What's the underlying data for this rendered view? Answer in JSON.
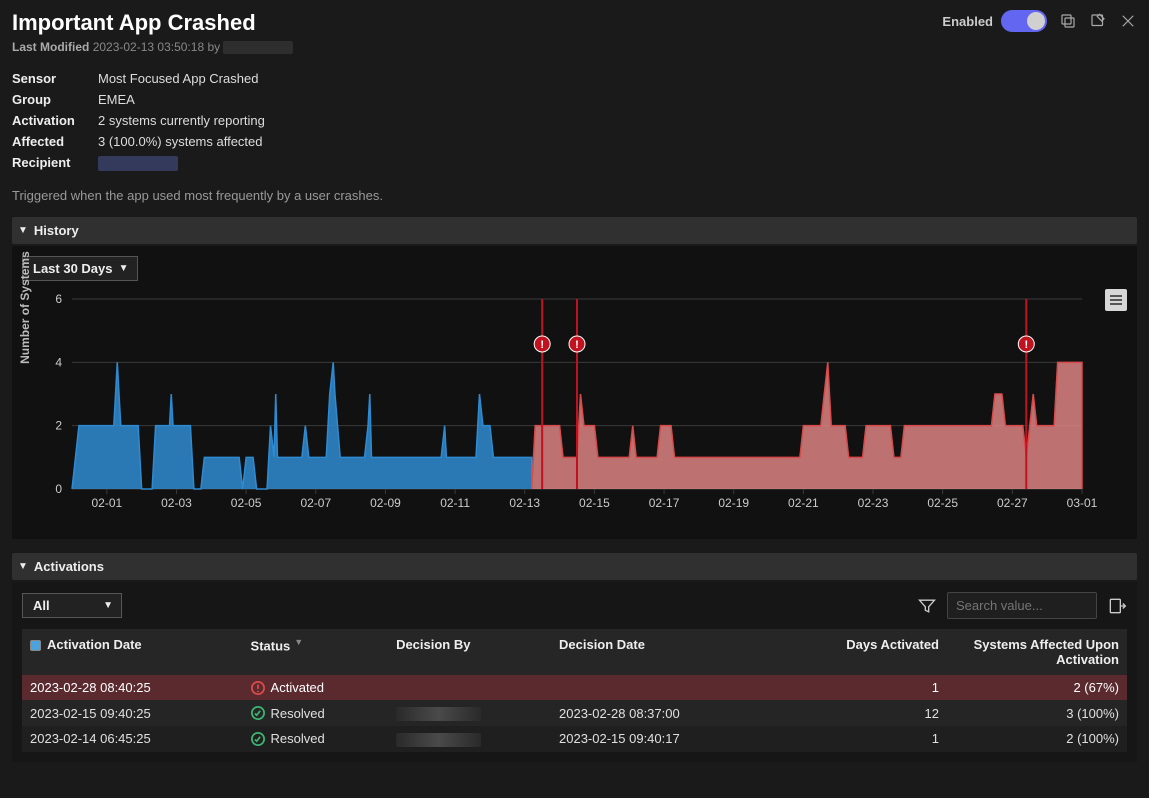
{
  "header": {
    "title": "Important App Crashed",
    "enabled_label": "Enabled",
    "enabled": true,
    "last_modified_label": "Last Modified",
    "last_modified": "2023-02-13 03:50:18 by"
  },
  "meta": {
    "sensor_label": "Sensor",
    "sensor": "Most Focused App Crashed",
    "group_label": "Group",
    "group": "EMEA",
    "activation_label": "Activation",
    "activation": "2 systems currently reporting",
    "affected_label": "Affected",
    "affected": "3 (100.0%) systems affected",
    "recipient_label": "Recipient"
  },
  "description": "Triggered when the app used most frequently by a user crashes.",
  "history": {
    "section_label": "History",
    "range_selected": "Last 30 Days",
    "chart": {
      "type": "area",
      "y_label": "Number of Systems",
      "ylim": [
        0,
        6
      ],
      "ytick_step": 2,
      "background": "#111111",
      "grid_color": "#3a3a3a",
      "x_ticks": [
        "02-01",
        "02-03",
        "02-05",
        "02-07",
        "02-09",
        "02-11",
        "02-13",
        "02-15",
        "02-17",
        "02-19",
        "02-21",
        "02-23",
        "02-25",
        "02-27",
        "03-01"
      ],
      "blue_color": "#2f8bd1",
      "blue_fill": "#2f8bd1",
      "blue_fill_opacity": 0.85,
      "red_color": "#d94b4b",
      "red_fill": "#e98a8a",
      "red_fill_opacity": 0.8,
      "marker_color": "#c1121f",
      "marker_text_color": "#ffffff",
      "tick_font_size": 12,
      "label_font_size": 12,
      "blue_series": [
        [
          0.0,
          0
        ],
        [
          0.2,
          2
        ],
        [
          1.2,
          2
        ],
        [
          1.3,
          4
        ],
        [
          1.4,
          2
        ],
        [
          1.9,
          2
        ],
        [
          2.0,
          0
        ],
        [
          2.3,
          0
        ],
        [
          2.4,
          2
        ],
        [
          2.8,
          2
        ],
        [
          2.85,
          3
        ],
        [
          2.9,
          2
        ],
        [
          3.4,
          2
        ],
        [
          3.5,
          0
        ],
        [
          3.7,
          0
        ],
        [
          3.8,
          1
        ],
        [
          4.8,
          1
        ],
        [
          4.9,
          0
        ],
        [
          5.0,
          1
        ],
        [
          5.2,
          1
        ],
        [
          5.3,
          0
        ],
        [
          5.6,
          0
        ],
        [
          5.7,
          2
        ],
        [
          5.8,
          1
        ],
        [
          5.85,
          3
        ],
        [
          5.9,
          1
        ],
        [
          6.6,
          1
        ],
        [
          6.7,
          2
        ],
        [
          6.8,
          1
        ],
        [
          7.3,
          1
        ],
        [
          7.4,
          3
        ],
        [
          7.5,
          4
        ],
        [
          7.55,
          3
        ],
        [
          7.7,
          1
        ],
        [
          8.4,
          1
        ],
        [
          8.5,
          2
        ],
        [
          8.55,
          3
        ],
        [
          8.6,
          1
        ],
        [
          10.6,
          1
        ],
        [
          10.7,
          2
        ],
        [
          10.75,
          1
        ],
        [
          11.6,
          1
        ],
        [
          11.7,
          3
        ],
        [
          11.8,
          2
        ],
        [
          12.0,
          2
        ],
        [
          12.1,
          1
        ],
        [
          13.2,
          1
        ],
        [
          13.2,
          0
        ]
      ],
      "red_series": [
        [
          13.2,
          0
        ],
        [
          13.3,
          2
        ],
        [
          14.0,
          2
        ],
        [
          14.1,
          1
        ],
        [
          14.5,
          1
        ],
        [
          14.6,
          3
        ],
        [
          14.7,
          2
        ],
        [
          15.0,
          2
        ],
        [
          15.1,
          1
        ],
        [
          16.0,
          1
        ],
        [
          16.1,
          2
        ],
        [
          16.2,
          1
        ],
        [
          16.8,
          1
        ],
        [
          16.9,
          2
        ],
        [
          17.2,
          2
        ],
        [
          17.3,
          1
        ],
        [
          20.9,
          1
        ],
        [
          21.0,
          2
        ],
        [
          21.5,
          2
        ],
        [
          21.6,
          3
        ],
        [
          21.7,
          4
        ],
        [
          21.8,
          2
        ],
        [
          22.2,
          2
        ],
        [
          22.3,
          1
        ],
        [
          22.7,
          1
        ],
        [
          22.8,
          2
        ],
        [
          23.5,
          2
        ],
        [
          23.6,
          1
        ],
        [
          23.8,
          1
        ],
        [
          23.9,
          2
        ],
        [
          26.4,
          2
        ],
        [
          26.5,
          3
        ],
        [
          26.7,
          3
        ],
        [
          26.8,
          2
        ],
        [
          27.3,
          2
        ],
        [
          27.4,
          1
        ],
        [
          27.5,
          2
        ],
        [
          27.6,
          3
        ],
        [
          27.7,
          2
        ],
        [
          28.2,
          2
        ],
        [
          28.3,
          4
        ],
        [
          29.0,
          4
        ],
        [
          29.0,
          0
        ]
      ],
      "markers": [
        13.5,
        14.5,
        27.4
      ]
    }
  },
  "activations": {
    "section_label": "Activations",
    "filter_selected": "All",
    "search_placeholder": "Search value...",
    "columns": {
      "date": "Activation Date",
      "status": "Status",
      "decision_by": "Decision By",
      "decision_date": "Decision Date",
      "days": "Days Activated",
      "affected": "Systems Affected Upon Activation"
    },
    "rows": [
      {
        "date": "2023-02-28 08:40:25",
        "status": "Activated",
        "status_kind": "activated",
        "decision_by": "",
        "decision_date": "",
        "days": "1",
        "affected": "2 (67%)"
      },
      {
        "date": "2023-02-15 09:40:25",
        "status": "Resolved",
        "status_kind": "resolved",
        "decision_by": "_redact_",
        "decision_date": "2023-02-28 08:37:00",
        "days": "12",
        "affected": "3 (100%)"
      },
      {
        "date": "2023-02-14 06:45:25",
        "status": "Resolved",
        "status_kind": "resolved",
        "decision_by": "_redact_",
        "decision_date": "2023-02-15 09:40:17",
        "days": "1",
        "affected": "2 (100%)"
      }
    ],
    "status_colors": {
      "activated": "#d94b4b",
      "resolved": "#3cb371"
    }
  }
}
